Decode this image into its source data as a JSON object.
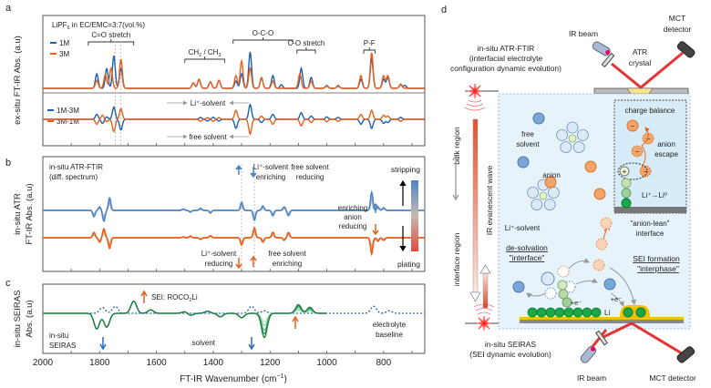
{
  "panel_labels": {
    "a": "a",
    "b": "b",
    "c": "c",
    "d": "d"
  },
  "chart_data": [
    {
      "id": "a",
      "type": "line",
      "title": "LiPF6 in EC/EMC=3:7(vol.%)",
      "ylabel": "ex-situ FT-IR Abs. (a.u)",
      "xlim": [
        2000,
        655
      ],
      "legend_top": [
        {
          "name": "1M",
          "color": "#1f5fae"
        },
        {
          "name": "3M",
          "color": "#e8601c"
        }
      ],
      "legend_bottom": [
        {
          "name": "1M-3M",
          "color": "#1f5fae"
        },
        {
          "name": "3M-1M",
          "color": "#e8601c"
        }
      ],
      "bands": [
        {
          "label": "C=O stretch",
          "from": 1840,
          "to": 1680
        },
        {
          "label": "CH2 / CH3",
          "from": 1500,
          "to": 1360
        },
        {
          "label": "O-C-O",
          "from": 1330,
          "to": 1120
        },
        {
          "label": "C-O stretch",
          "from": 1105,
          "to": 1040
        },
        {
          "label": "P-F",
          "from": 870,
          "to": 830
        }
      ],
      "annotations": {
        "upper_arrow": "Li⁺-solvent",
        "lower_arrow": "free solvent"
      },
      "guide_lines": [
        1745,
        1725
      ],
      "series": [
        {
          "name": "1M",
          "color": "#1f5fae",
          "peaks": [
            [
              1810,
              0.4
            ],
            [
              1775,
              0.55
            ],
            [
              1750,
              0.9
            ],
            [
              1725,
              0.55
            ],
            [
              1470,
              0.15
            ],
            [
              1450,
              0.25
            ],
            [
              1410,
              0.18
            ],
            [
              1380,
              0.22
            ],
            [
              1320,
              0.2
            ],
            [
              1300,
              0.4
            ],
            [
              1270,
              1.0
            ],
            [
              1230,
              0.28
            ],
            [
              1190,
              0.35
            ],
            [
              1160,
              0.1
            ],
            [
              1090,
              0.55
            ],
            [
              1055,
              0.3
            ],
            [
              1000,
              0.08
            ],
            [
              960,
              0.08
            ],
            [
              880,
              0.25
            ],
            [
              842,
              0.8
            ],
            [
              800,
              0.25
            ],
            [
              785,
              0.3
            ],
            [
              740,
              0.1
            ],
            [
              725,
              0.08
            ]
          ]
        },
        {
          "name": "3M",
          "color": "#e8601c",
          "peaks": [
            [
              1810,
              0.22
            ],
            [
              1780,
              0.38
            ],
            [
              1760,
              0.55
            ],
            [
              1725,
              0.8
            ],
            [
              1470,
              0.15
            ],
            [
              1450,
              0.25
            ],
            [
              1410,
              0.18
            ],
            [
              1380,
              0.22
            ],
            [
              1320,
              0.35
            ],
            [
              1300,
              0.75
            ],
            [
              1270,
              0.55
            ],
            [
              1230,
              0.3
            ],
            [
              1190,
              0.2
            ],
            [
              1095,
              0.4
            ],
            [
              1055,
              0.2
            ],
            [
              1000,
              0.06
            ],
            [
              960,
              0.06
            ],
            [
              880,
              0.35
            ],
            [
              842,
              0.98
            ],
            [
              800,
              0.35
            ],
            [
              785,
              0.35
            ],
            [
              740,
              0.12
            ]
          ]
        }
      ],
      "diff": [
        {
          "name": "1M-3M",
          "color": "#1f5fae",
          "peaks": [
            [
              1810,
              0.3
            ],
            [
              1790,
              -0.25
            ],
            [
              1775,
              0.15
            ],
            [
              1750,
              0.75
            ],
            [
              1725,
              -0.65
            ],
            [
              1445,
              0.12
            ],
            [
              1420,
              -0.1
            ],
            [
              1400,
              0.12
            ],
            [
              1380,
              -0.1
            ],
            [
              1320,
              -0.55
            ],
            [
              1270,
              0.9
            ],
            [
              1230,
              -0.2
            ],
            [
              1190,
              0.3
            ],
            [
              1090,
              0.4
            ],
            [
              1055,
              0.2
            ],
            [
              1000,
              0.15
            ],
            [
              960,
              0.12
            ],
            [
              880,
              -0.3
            ],
            [
              842,
              -0.55
            ],
            [
              800,
              -0.25
            ],
            [
              785,
              -0.2
            ],
            [
              740,
              0.12
            ]
          ]
        }
      ]
    },
    {
      "id": "b",
      "type": "line",
      "title": "in-situ ATR-FTIR (diff. spectrum)",
      "ylabel": "in-situ ATR FT-IR Abs. (a.u)",
      "xlim": [
        2000,
        655
      ],
      "colorbar": {
        "top_label": "stripping",
        "bottom_label": "plating",
        "top_color": "#4a86c8",
        "mid_color": "#c9b8b0",
        "bottom_color": "#e8473a"
      },
      "annotations": [
        {
          "text": "Li⁺-solvent enriching",
          "arrow": "up",
          "color": "#4a86c8"
        },
        {
          "text": "free solvent reducing",
          "arrow": "down",
          "color": "#4a86c8"
        },
        {
          "text": "enriching anion reducing",
          "arrow": "up-down"
        },
        {
          "text": "Li⁺-solvent reducing",
          "arrow": "down",
          "color": "#e8601c"
        },
        {
          "text": "free solvent enriching",
          "arrow": "up",
          "color": "#e8601c"
        }
      ],
      "guide_lines": [
        1300,
        1255
      ],
      "series": [
        {
          "name": "stripping",
          "color": "#4a86c8",
          "peaks": [
            [
              1820,
              -0.35
            ],
            [
              1800,
              0.2
            ],
            [
              1785,
              -0.6
            ],
            [
              1765,
              0.7
            ],
            [
              1505,
              0.08
            ],
            [
              1480,
              -0.1
            ],
            [
              1445,
              0.12
            ],
            [
              1410,
              -0.15
            ],
            [
              1300,
              0.45
            ],
            [
              1255,
              -0.55
            ],
            [
              1225,
              0.25
            ],
            [
              1190,
              -0.3
            ],
            [
              1150,
              0.2
            ],
            [
              1135,
              -0.3
            ],
            [
              842,
              1.0
            ],
            [
              820,
              0.2
            ],
            [
              800,
              0.15
            ]
          ]
        },
        {
          "name": "plating",
          "color": "#e8601c",
          "peaks": [
            [
              1820,
              0.3
            ],
            [
              1800,
              -0.25
            ],
            [
              1785,
              0.5
            ],
            [
              1765,
              -0.6
            ],
            [
              1505,
              0.05
            ],
            [
              1480,
              0.1
            ],
            [
              1445,
              -0.1
            ],
            [
              1410,
              0.12
            ],
            [
              1300,
              -0.4
            ],
            [
              1255,
              0.55
            ],
            [
              1225,
              -0.25
            ],
            [
              1190,
              0.3
            ],
            [
              1150,
              -0.15
            ],
            [
              1135,
              0.3
            ],
            [
              842,
              -0.9
            ],
            [
              820,
              -0.2
            ],
            [
              800,
              -0.15
            ]
          ]
        }
      ]
    },
    {
      "id": "c",
      "type": "line",
      "ylabel": "in-situ SEIRAS Abs. (a.u)",
      "xlabel": "FT-IR Wavenumber (cm⁻¹)",
      "xlim": [
        2000,
        655
      ],
      "xticks": [
        2000,
        1800,
        1600,
        1400,
        1200,
        1000,
        800
      ],
      "annotations": [
        {
          "text": "SEI: ROCO2Li",
          "arrow": "up",
          "color": "#e8601c",
          "x": 1645
        },
        {
          "text": "in-situ SEIRAS",
          "x": 1960
        },
        {
          "text": "solvent",
          "arrow": "down",
          "color": "#2a6ebb",
          "x": 1260
        },
        {
          "text": "electrolyte baseline",
          "x": 760
        },
        {
          "arrow": "up",
          "color": "#e8601c",
          "x": 1110
        },
        {
          "arrow": "down",
          "color": "#2a6ebb",
          "x": 1785
        }
      ],
      "baseline": {
        "name": "electrolyte baseline",
        "color": "#2a5fae",
        "peaks": [
          [
            1790,
            0.45
          ],
          [
            1745,
            0.55
          ],
          [
            1265,
            0.55
          ],
          [
            1220,
            0.2
          ],
          [
            835,
            0.55
          ],
          [
            780,
            0.2
          ]
        ]
      },
      "series": [
        {
          "name": "t1",
          "color": "#b7e6c7",
          "scale": 0.35
        },
        {
          "name": "t2",
          "color": "#8fd6a8",
          "scale": 0.5
        },
        {
          "name": "t3",
          "color": "#5fc083",
          "scale": 0.7
        },
        {
          "name": "t4",
          "color": "#2f9e5c",
          "scale": 0.85
        },
        {
          "name": "t5",
          "color": "#1e7a43",
          "scale": 1.0
        }
      ],
      "seiras_peaks": [
        [
          1810,
          -0.9
        ],
        [
          1775,
          -0.8
        ],
        [
          1680,
          0.7
        ],
        [
          1620,
          0.2
        ],
        [
          1500,
          0.1
        ],
        [
          1480,
          -0.12
        ],
        [
          1420,
          0.12
        ],
        [
          1375,
          -0.2
        ],
        [
          1300,
          -0.25
        ],
        [
          1220,
          -1.4
        ],
        [
          1100,
          0.5
        ],
        [
          1060,
          0.35
        ]
      ]
    }
  ],
  "diagram": {
    "top_method": "in-situ ATR-FTIR",
    "top_method_sub1": "(interfacial electrolyte",
    "top_method_sub2": "configuration dynamic evolution)",
    "ir_beam_top": "IR beam",
    "mct_top_1": "MCT",
    "mct_top_2": "detector",
    "atr_1": "ATR",
    "atr_2": "crystal",
    "bulk_region": "bulk region",
    "interface_region": "interface region",
    "evanescent": "IR evanescent wave",
    "free_solvent_1": "free",
    "free_solvent_2": "solvent",
    "anion": "anion",
    "li_solvent": "Li⁺-solvent",
    "charge_balance": "charge balance",
    "anion_escape_1": "anion",
    "anion_escape_2": "escape",
    "li_reduction": "Li⁺→Li⁰",
    "anion_lean_1": "\"anion-lean\"",
    "anion_lean_2": "interface",
    "desolvation_1": "de-solvation",
    "desolvation_2": "\"interface\"",
    "sei_1": "SEI formation",
    "sei_2": "\"interphase\"",
    "electron_1": "+e⁻",
    "electron_2": "+e⁻",
    "li": "Li",
    "bottom_method": "in-situ SEIRAS",
    "bottom_method_sub": "(SEI dynamic evolution)",
    "ir_beam_bottom": "IR beam",
    "mct_bottom": "MCT detector"
  }
}
